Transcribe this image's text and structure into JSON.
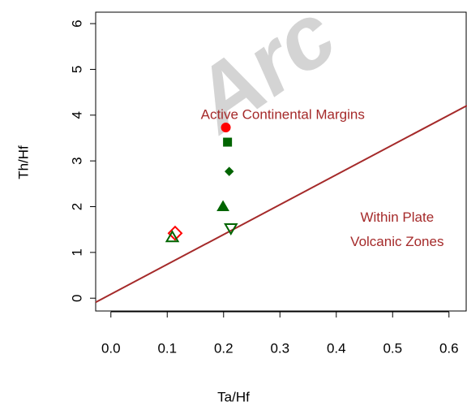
{
  "chart_data": {
    "type": "scatter",
    "x_label": "Ta/Hf",
    "y_label": "Th/Hf",
    "xlim": [
      -0.027,
      0.632
    ],
    "ylim": [
      -0.28,
      6.25
    ],
    "xticks": [
      {
        "value": 0,
        "label": "0.0"
      },
      0.1,
      0.2,
      0.3,
      0.4,
      0.5,
      0.6
    ],
    "yticks": [
      0,
      1,
      2,
      3,
      4,
      5,
      6
    ],
    "points": [
      {
        "x": 0.204,
        "y": 3.73,
        "shape": "circle",
        "filled": true,
        "color": "#ff0000"
      },
      {
        "x": 0.207,
        "y": 3.41,
        "shape": "square",
        "filled": true,
        "color": "#006400"
      },
      {
        "x": 0.21,
        "y": 2.77,
        "shape": "diamond",
        "filled": true,
        "color": "#006400"
      },
      {
        "x": 0.199,
        "y": 2.0,
        "shape": "triangle",
        "filled": true,
        "color": "#006400"
      },
      {
        "x": 0.114,
        "y": 1.42,
        "shape": "diamond",
        "filled": false,
        "color": "#ff0000"
      },
      {
        "x": 0.109,
        "y": 1.33,
        "shape": "triangle",
        "filled": false,
        "color": "#006400"
      },
      {
        "x": 0.213,
        "y": 1.53,
        "shape": "triangle-down",
        "filled": false,
        "color": "#006400"
      }
    ],
    "line": {
      "x": [
        -0.027,
        0.632
      ],
      "y": [
        -0.09,
        4.21
      ],
      "color": "#a52a2a"
    },
    "annotations": [
      {
        "text": "Active Continental Margins",
        "x": 0.305,
        "y": 4.0
      },
      {
        "text": "Within Plate",
        "x": 0.508,
        "y": 1.75
      },
      {
        "text": "Volcanic Zones",
        "x": 0.508,
        "y": 1.22
      }
    ],
    "watermark": "Arc"
  }
}
